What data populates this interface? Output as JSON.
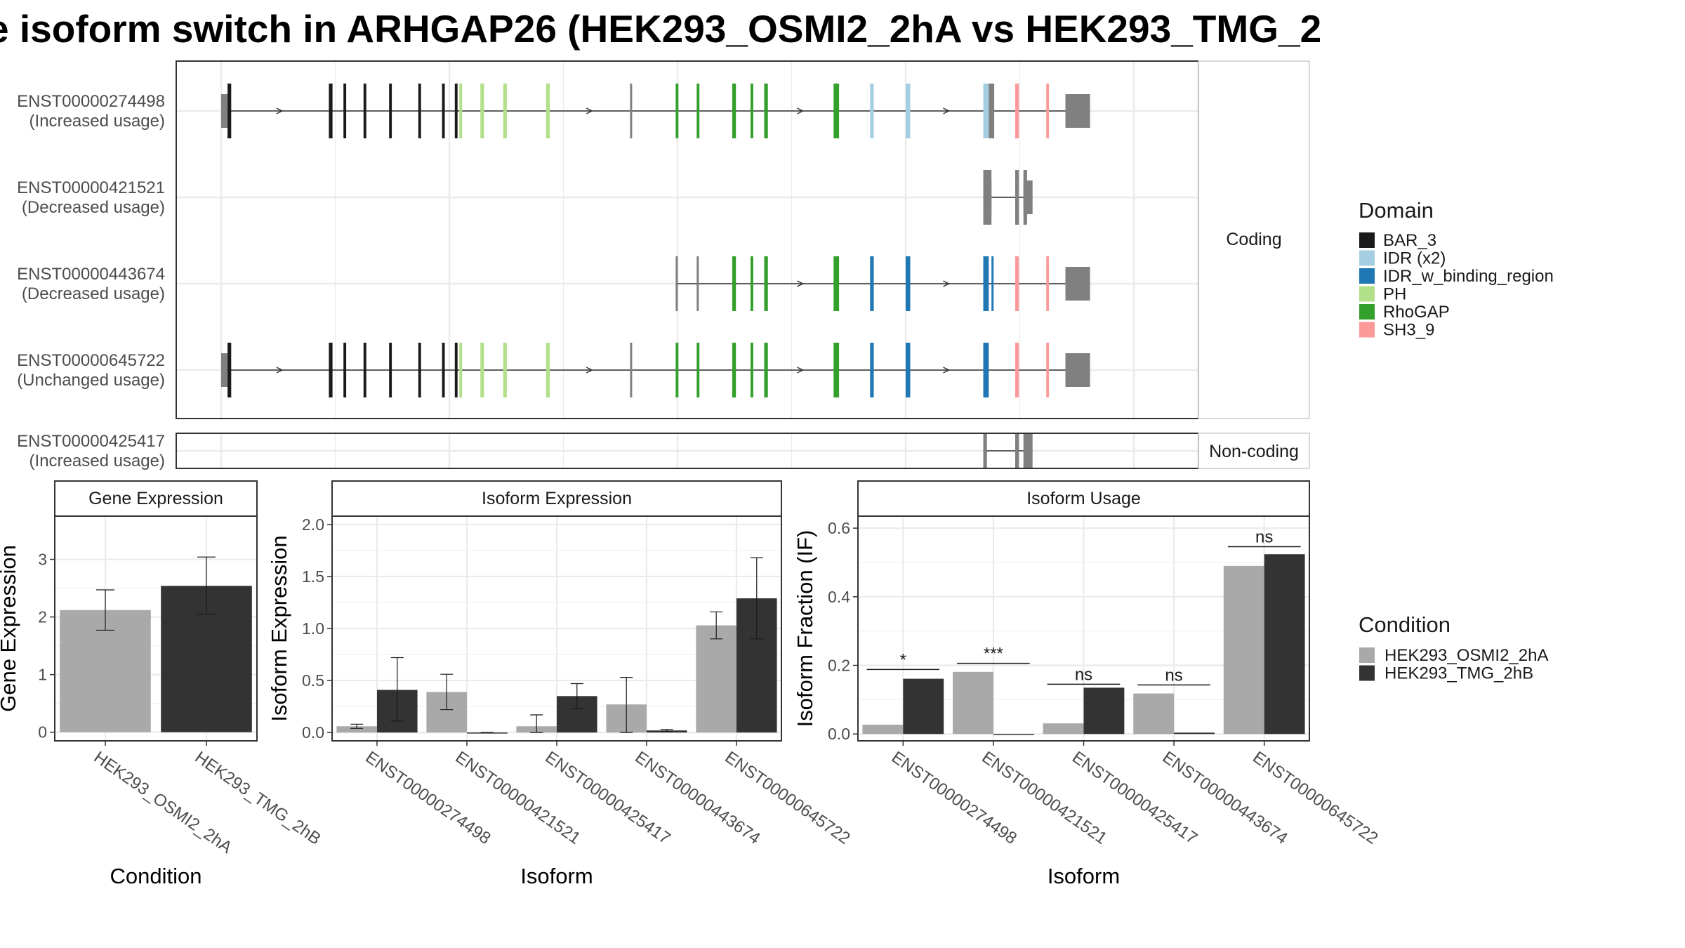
{
  "page": {
    "title": "e isoform switch in ARHGAP26 (HEK293_OSMI2_2hA vs HEK293_TMG_2"
  },
  "structure_panel": {
    "exon_axis_range": [
      0,
      1000
    ],
    "isoforms": [
      {
        "id": "ENST00000274498",
        "usage_label": "(Increased usage)",
        "group": "Coding",
        "intron_span": [
          7,
          952
        ],
        "utr": [
          [
            0,
            7
          ],
          [
            925,
            952
          ]
        ],
        "exons": [
          [
            7,
            11,
            "BAR_3"
          ],
          [
            118,
            122,
            "BAR_3"
          ],
          [
            134,
            137,
            "BAR_3"
          ],
          [
            156,
            159,
            "BAR_3"
          ],
          [
            184,
            187,
            "BAR_3"
          ],
          [
            216,
            219,
            "BAR_3"
          ],
          [
            242,
            245,
            "BAR_3"
          ],
          [
            256,
            259,
            "BAR_3"
          ],
          [
            261,
            264,
            "PH"
          ],
          [
            284,
            288,
            "PH"
          ],
          [
            309,
            313,
            "PH"
          ],
          [
            356,
            360,
            "PH"
          ],
          [
            448,
            450,
            "none"
          ],
          [
            498,
            501,
            "RhoGAP"
          ],
          [
            521,
            524,
            "RhoGAP"
          ],
          [
            560,
            564,
            "RhoGAP"
          ],
          [
            580,
            583,
            "RhoGAP"
          ],
          [
            595,
            599,
            "RhoGAP"
          ],
          [
            671,
            677,
            "RhoGAP"
          ],
          [
            711,
            715,
            "IDR (x2)"
          ],
          [
            750,
            755,
            "IDR (x2)"
          ],
          [
            835,
            841,
            "IDR (x2)"
          ],
          [
            841,
            847,
            "none"
          ],
          [
            870,
            874,
            "SH3_9"
          ],
          [
            904,
            907,
            "SH3_9"
          ]
        ]
      },
      {
        "id": "ENST00000421521",
        "usage_label": "(Decreased usage)",
        "group": "Coding",
        "intron_span": [
          835,
          889
        ],
        "utr": [
          [
            835,
            844
          ],
          [
            879,
            889
          ]
        ],
        "exons": [
          [
            835,
            844,
            "none"
          ],
          [
            870,
            874,
            "none"
          ],
          [
            879,
            883,
            "none"
          ]
        ]
      },
      {
        "id": "ENST00000443674",
        "usage_label": "(Decreased usage)",
        "group": "Coding",
        "intron_span": [
          498,
          952
        ],
        "utr": [
          [
            498,
            500
          ],
          [
            925,
            952
          ]
        ],
        "exons": [
          [
            498,
            500,
            "none"
          ],
          [
            521,
            523,
            "none"
          ],
          [
            560,
            564,
            "RhoGAP"
          ],
          [
            580,
            583,
            "RhoGAP"
          ],
          [
            595,
            599,
            "RhoGAP"
          ],
          [
            671,
            677,
            "RhoGAP"
          ],
          [
            711,
            715,
            "IDR_w_binding_region"
          ],
          [
            750,
            755,
            "IDR_w_binding_region"
          ],
          [
            835,
            841,
            "IDR_w_binding_region"
          ],
          [
            844,
            846,
            "IDR_w_binding_region"
          ],
          [
            870,
            874,
            "SH3_9"
          ],
          [
            904,
            907,
            "SH3_9"
          ]
        ]
      },
      {
        "id": "ENST00000645722",
        "usage_label": "(Unchanged usage)",
        "group": "Coding",
        "intron_span": [
          0,
          952
        ],
        "utr": [
          [
            0,
            7
          ],
          [
            925,
            952
          ]
        ],
        "exons": [
          [
            7,
            11,
            "BAR_3"
          ],
          [
            118,
            122,
            "BAR_3"
          ],
          [
            134,
            137,
            "BAR_3"
          ],
          [
            156,
            159,
            "BAR_3"
          ],
          [
            184,
            187,
            "BAR_3"
          ],
          [
            216,
            219,
            "BAR_3"
          ],
          [
            242,
            245,
            "BAR_3"
          ],
          [
            256,
            259,
            "BAR_3"
          ],
          [
            261,
            264,
            "PH"
          ],
          [
            284,
            288,
            "PH"
          ],
          [
            309,
            313,
            "PH"
          ],
          [
            356,
            360,
            "PH"
          ],
          [
            448,
            450,
            "none"
          ],
          [
            498,
            501,
            "RhoGAP"
          ],
          [
            521,
            524,
            "RhoGAP"
          ],
          [
            560,
            564,
            "RhoGAP"
          ],
          [
            580,
            583,
            "RhoGAP"
          ],
          [
            595,
            599,
            "RhoGAP"
          ],
          [
            671,
            677,
            "RhoGAP"
          ],
          [
            711,
            715,
            "IDR_w_binding_region"
          ],
          [
            750,
            755,
            "IDR_w_binding_region"
          ],
          [
            835,
            841,
            "IDR_w_binding_region"
          ],
          [
            870,
            874,
            "SH3_9"
          ],
          [
            904,
            907,
            "SH3_9"
          ]
        ]
      },
      {
        "id": "ENST00000425417",
        "usage_label": "(Increased usage)",
        "group": "Non-coding",
        "intron_span": [
          835,
          889
        ],
        "utr": [],
        "exons": [
          [
            835,
            839,
            "none"
          ],
          [
            870,
            874,
            "none"
          ],
          [
            879,
            889,
            "none"
          ]
        ]
      }
    ],
    "facet_labels": {
      "coding": "Coding",
      "noncoding": "Non-coding"
    }
  },
  "domain_legend": {
    "title": "Domain",
    "items": [
      {
        "label": "BAR_3",
        "color": "#1a1a1a"
      },
      {
        "label": "IDR (x2)",
        "color": "#a6cee3"
      },
      {
        "label": "IDR_w_binding_region",
        "color": "#1f78b4"
      },
      {
        "label": "PH",
        "color": "#b2df8a"
      },
      {
        "label": "RhoGAP",
        "color": "#33a02c"
      },
      {
        "label": "SH3_9",
        "color": "#fb9a99"
      }
    ],
    "non_domain_color": "#808080"
  },
  "condition_legend": {
    "title": "Condition",
    "items": [
      {
        "label": "HEK293_OSMI2_2hA",
        "color": "#a9a9a9"
      },
      {
        "label": "HEK293_TMG_2hB",
        "color": "#333333"
      }
    ]
  },
  "chart_data": [
    {
      "type": "bar",
      "title": "Gene Expression",
      "xlabel": "Condition",
      "ylabel": "Gene Expression",
      "ylim": [
        -0.15,
        3.75
      ],
      "yticks": [
        0,
        1,
        2,
        3
      ],
      "categories": [
        "HEK293_OSMI2_2hA",
        "HEK293_TMG_2hB"
      ],
      "values": [
        2.12,
        2.54
      ],
      "error": [
        [
          1.77,
          2.47
        ],
        [
          2.05,
          3.04
        ]
      ],
      "colors": [
        "#a9a9a9",
        "#333333"
      ]
    },
    {
      "type": "bar",
      "title": "Isoform Expression",
      "xlabel": "Isoform",
      "ylabel": "Isoform Expression",
      "ylim": [
        -0.08,
        2.08
      ],
      "yticks": [
        "0.0",
        "0.5",
        "1.0",
        "1.5",
        "2.0"
      ],
      "categories": [
        "ENST00000274498",
        "ENST00000421521",
        "ENST00000425417",
        "ENST00000443674",
        "ENST00000645722"
      ],
      "series": [
        {
          "name": "HEK293_OSMI2_2hA",
          "values": [
            0.06,
            0.39,
            0.06,
            0.27,
            1.03
          ],
          "error": [
            [
              0.04,
              0.08
            ],
            [
              0.22,
              0.56
            ],
            [
              0.0,
              0.17
            ],
            [
              0.0,
              0.53
            ],
            [
              0.9,
              1.16
            ]
          ]
        },
        {
          "name": "HEK293_TMG_2hB",
          "values": [
            0.41,
            0.0,
            0.35,
            0.02,
            1.29
          ],
          "error": [
            [
              0.11,
              0.72
            ],
            [
              0.0,
              0.0
            ],
            [
              0.23,
              0.47
            ],
            [
              0.01,
              0.03
            ],
            [
              0.9,
              1.68
            ]
          ]
        }
      ]
    },
    {
      "type": "bar",
      "title": "Isoform Usage",
      "xlabel": "Isoform",
      "ylabel": "Isoform Fraction (IF)",
      "ylim": [
        -0.02,
        0.635
      ],
      "yticks": [
        "0.0",
        "0.2",
        "0.4",
        "0.6"
      ],
      "categories": [
        "ENST00000274498",
        "ENST00000421521",
        "ENST00000425417",
        "ENST00000443674",
        "ENST00000645722"
      ],
      "series": [
        {
          "name": "HEK293_OSMI2_2hA",
          "values": [
            0.027,
            0.181,
            0.031,
            0.118,
            0.49
          ]
        },
        {
          "name": "HEK293_TMG_2hB",
          "values": [
            0.161,
            0.0,
            0.135,
            0.004,
            0.524
          ]
        }
      ],
      "significance": [
        {
          "label": "*",
          "y": 0.188
        },
        {
          "label": "***",
          "y": 0.206
        },
        {
          "label": "ns",
          "y": 0.145
        },
        {
          "label": "ns",
          "y": 0.143
        },
        {
          "label": "ns",
          "y": 0.546
        }
      ]
    }
  ]
}
